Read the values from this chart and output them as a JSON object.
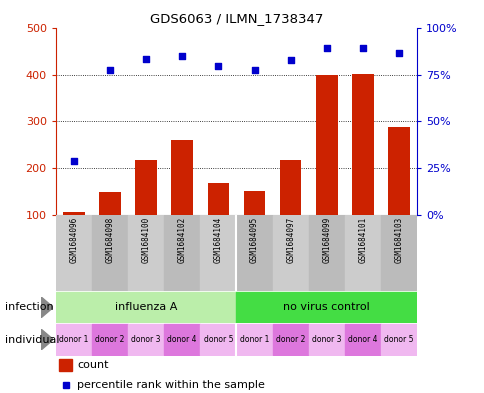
{
  "title": "GDS6063 / ILMN_1738347",
  "samples": [
    "GSM1684096",
    "GSM1684098",
    "GSM1684100",
    "GSM1684102",
    "GSM1684104",
    "GSM1684095",
    "GSM1684097",
    "GSM1684099",
    "GSM1684101",
    "GSM1684103"
  ],
  "counts": [
    105,
    148,
    218,
    260,
    167,
    151,
    217,
    400,
    402,
    288
  ],
  "percentile_ranks_left_units": [
    215,
    410,
    433,
    439,
    418,
    410,
    432,
    458,
    458,
    447
  ],
  "ylim_left": [
    100,
    500
  ],
  "bar_color": "#cc2200",
  "dot_color": "#0000cc",
  "infection_groups": [
    {
      "label": "influenza A",
      "start": 0,
      "end": 5,
      "color": "#bbeeaa"
    },
    {
      "label": "no virus control",
      "start": 5,
      "end": 10,
      "color": "#44dd44"
    }
  ],
  "individual_labels": [
    "donor 1",
    "donor 2",
    "donor 3",
    "donor 4",
    "donor 5",
    "donor 1",
    "donor 2",
    "donor 3",
    "donor 4",
    "donor 5"
  ],
  "individual_colors": [
    "#f0b8f0",
    "#dd77dd",
    "#f0b8f0",
    "#dd77dd",
    "#f0b8f0",
    "#f0b8f0",
    "#dd77dd",
    "#f0b8f0",
    "#dd77dd",
    "#f0b8f0"
  ],
  "sample_colors_even": "#cccccc",
  "sample_colors_odd": "#bbbbbb",
  "row_infection_label": "infection",
  "row_individual_label": "individual",
  "left_axis_color": "#cc2200",
  "right_axis_color": "#0000cc",
  "background_color": "#ffffff"
}
